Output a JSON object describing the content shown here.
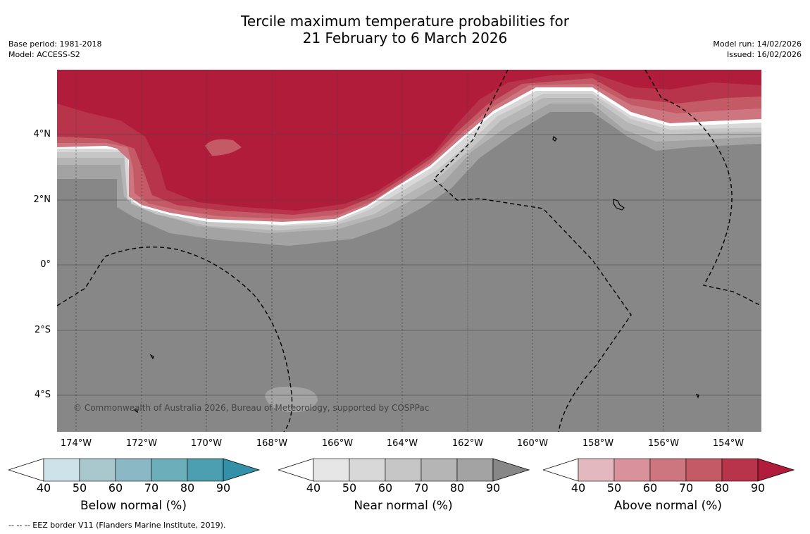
{
  "title": {
    "line1": "Tercile maximum temperature probabilities for",
    "line2": "21 February to 6 March 2026"
  },
  "meta_left": {
    "base_period": "Base period: 1981-2018",
    "model": "Model: ACCESS-S2"
  },
  "meta_right": {
    "model_run": "Model run: 14/02/2026",
    "issued": "Issued: 16/02/2026"
  },
  "axes": {
    "y_labels": [
      "4°N",
      "2°N",
      "0°",
      "2°S",
      "4°S"
    ],
    "x_labels": [
      "174°W",
      "172°W",
      "170°W",
      "168°W",
      "166°W",
      "164°W",
      "162°W",
      "160°W",
      "158°W",
      "156°W",
      "154°W"
    ]
  },
  "map": {
    "background_color": "#878787",
    "above_color": "#b01c3a",
    "legend_line": "-- -- -- EEZ border V11 (Flanders Marine Institute, 2019).",
    "copyright": "© Commonwealth of Australia 2026, Bureau of Meteorology, supported by COSPPac"
  },
  "colorbars": [
    {
      "title": "Below normal (%)",
      "ticks": [
        "40",
        "50",
        "60",
        "70",
        "80",
        "90"
      ],
      "colors": [
        "#cde3e9",
        "#a9c8ce",
        "#8bb8c4",
        "#6caeba",
        "#4c9fae",
        "#3390a8"
      ]
    },
    {
      "title": "Near normal (%)",
      "ticks": [
        "40",
        "50",
        "60",
        "70",
        "80",
        "90"
      ],
      "colors": [
        "#e6e6e6",
        "#d8d8d8",
        "#c6c6c6",
        "#b5b5b5",
        "#a3a3a3",
        "#878787"
      ]
    },
    {
      "title": "Above normal (%)",
      "ticks": [
        "40",
        "50",
        "60",
        "70",
        "80",
        "90"
      ],
      "colors": [
        "#e4b8bf",
        "#d9919b",
        "#cd7680",
        "#c45a66",
        "#b8344a",
        "#b01c3a"
      ]
    }
  ]
}
